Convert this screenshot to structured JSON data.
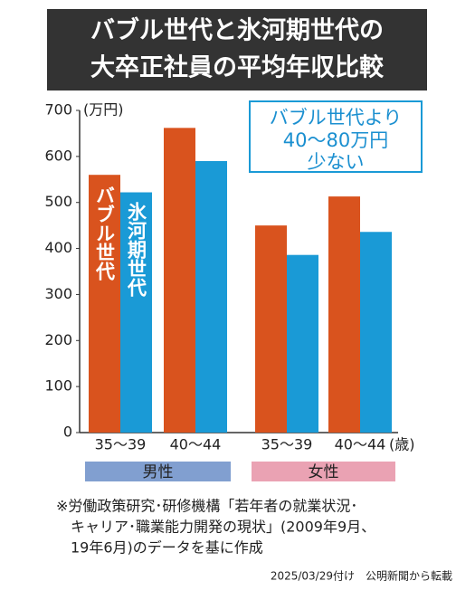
{
  "chart_data": {
    "type": "bar",
    "title": [
      "バブル世代と氷河期世代の",
      "大卒正社員の平均年収比較"
    ],
    "y_unit": "(万円)",
    "x_unit": "(歳)",
    "categories": [
      "35〜39",
      "40〜44",
      "35〜39",
      "40〜44"
    ],
    "groups": [
      "男性",
      "女性"
    ],
    "group_colors": [
      "#819fd0",
      "#eaa2b3"
    ],
    "series": [
      {
        "name": "バブル世代",
        "color": "#d9531e",
        "values": [
          560,
          662,
          450,
          513
        ]
      },
      {
        "name": "氷河期世代",
        "color": "#1a9ad6",
        "values": [
          522,
          590,
          386,
          436
        ]
      }
    ],
    "ylim": [
      0,
      700
    ],
    "yticks": [
      0,
      100,
      200,
      300,
      400,
      500,
      600,
      700
    ],
    "annotation": [
      "バブル世代より",
      "40〜80万円",
      "少ない"
    ],
    "footnote": [
      "※労働政策研究･研修機構「若年者の就業状況･",
      "キャリア･職業能力開発の現状」(2009年9月、",
      "19年6月)のデータを基に作成"
    ],
    "credit": "2025/03/29付け　公明新聞から転載"
  }
}
